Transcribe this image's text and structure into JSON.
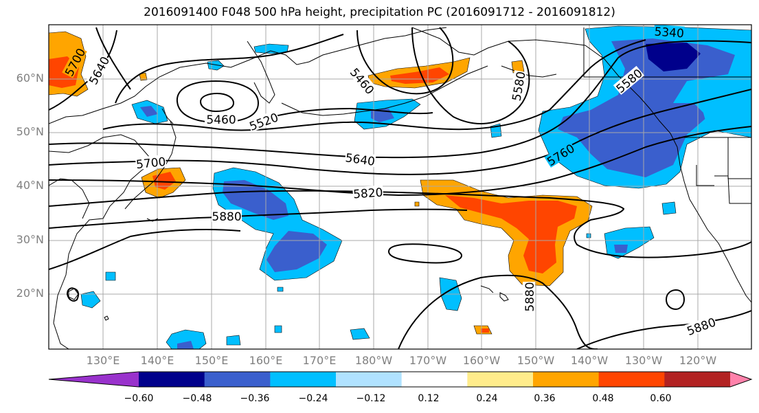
{
  "title": "2016091400 F048 500 hPa height, precipitation PC (2016091712 - 2016091812)",
  "lat_labels": [
    "60°N",
    "50°N",
    "40°N",
    "30°N",
    "20°N"
  ],
  "lon_labels": [
    "130°E",
    "140°E",
    "150°E",
    "160°E",
    "170°E",
    "180°W",
    "170°W",
    "160°W",
    "150°W",
    "140°W",
    "130°W",
    "120°W"
  ],
  "contour_labels": [
    "5700",
    "5640",
    "5460",
    "5460",
    "5520",
    "5580",
    "5340",
    "5580",
    "5700",
    "5640",
    "5760",
    "5820",
    "5880",
    "5880",
    "5880"
  ],
  "colorbar": {
    "colors": [
      "#9932cc",
      "#00008b",
      "#3a5fcd",
      "#00bfff",
      "#b0e2ff",
      "#ffffff",
      "#ffec8b",
      "#ffa500",
      "#ff4500",
      "#b22222",
      "#ff82ab"
    ],
    "labels": [
      "−0.60",
      "−0.48",
      "−0.36",
      "−0.24",
      "−0.12",
      "0.12",
      "0.24",
      "0.36",
      "0.48",
      "0.60"
    ]
  }
}
